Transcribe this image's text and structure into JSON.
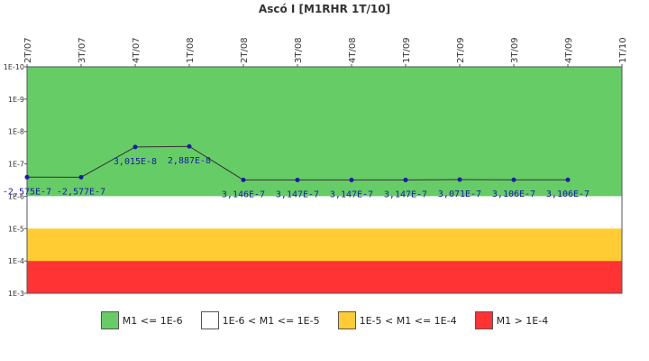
{
  "chart_data": {
    "type": "line",
    "title": "Ascó I [M1RHR 1T/10]",
    "categories": [
      "2T/07",
      "3T/07",
      "4T/07",
      "1T/08",
      "2T/08",
      "3T/08",
      "4T/08",
      "1T/09",
      "2T/09",
      "3T/09",
      "4T/09",
      "1T/10"
    ],
    "series": [
      {
        "values": [
          -2.575e-07,
          -2.577e-07,
          3.015e-08,
          2.887e-08,
          3.146e-07,
          3.147e-07,
          3.147e-07,
          3.147e-07,
          3.071e-07,
          3.106e-07,
          3.106e-07,
          null
        ],
        "labels": [
          "-2,575E-7",
          "-2,577E-7",
          "3,015E-8",
          "2,887E-8",
          "3,146E-7",
          "3,147E-7",
          "3,147E-7",
          "3,147E-7",
          "3,071E-7",
          "3,106E-7",
          "3,106E-7",
          ""
        ]
      }
    ],
    "y_scale": "log",
    "y_inverted": true,
    "y_ticks": [
      "1E-10",
      "1E-9",
      "1E-8",
      "1E-7",
      "1E-6",
      "1E-5",
      "1E-4",
      "1E-3"
    ],
    "ylim": [
      1e-10,
      0.001
    ],
    "bands": [
      {
        "label": "M1 <= 1E-6",
        "from": 1e-10,
        "to": 1e-06,
        "color": "#66cc66"
      },
      {
        "label": "1E-6 < M1 <= 1E-5",
        "from": 1e-06,
        "to": 1e-05,
        "color": "#ffffff"
      },
      {
        "label": "1E-5 < M1 <= 1E-4",
        "from": 1e-05,
        "to": 0.0001,
        "color": "#ffcc33"
      },
      {
        "label": "M1 > 1E-4",
        "from": 0.0001,
        "to": 0.001,
        "color": "#ff3333"
      }
    ],
    "legend_position": "bottom",
    "line_color": "#333333",
    "point_color": "#1a1aaa"
  }
}
